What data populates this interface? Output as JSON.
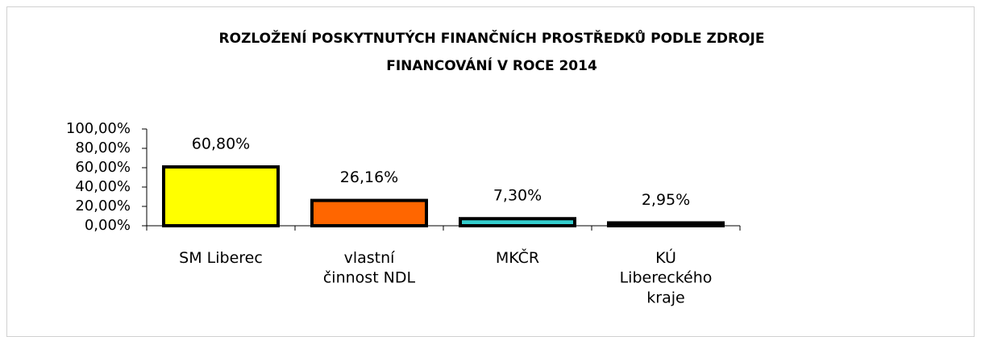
{
  "chart_data": {
    "type": "bar",
    "title": [
      "ROZLOŽENÍ  POSKYTNUTÝCH FINANČNÍCH  PROSTŘEDKŮ  PODLE ZDROJE",
      "FINANCOVÁNÍ V  ROCE 2014"
    ],
    "categories": [
      "SM Liberec",
      "vlastní činnost NDL",
      "MKČR",
      "KÚ Libereckého kraje"
    ],
    "values": [
      60.8,
      26.16,
      7.3,
      2.95
    ],
    "value_labels": [
      "60,80%",
      "26,16%",
      "7,30%",
      "2,95%"
    ],
    "colors": [
      "#ffff00",
      "#ff6600",
      "#33cccc",
      "#000000"
    ],
    "ylim": [
      0,
      100
    ],
    "yticks": [
      {
        "value": 0,
        "label": "0,00%"
      },
      {
        "value": 20,
        "label": "20,00%"
      },
      {
        "value": 40,
        "label": "40,00%"
      },
      {
        "value": 60,
        "label": "60,00%"
      },
      {
        "value": 80,
        "label": "80,00%"
      },
      {
        "value": 100,
        "label": "100,00%"
      }
    ],
    "grid": false
  }
}
